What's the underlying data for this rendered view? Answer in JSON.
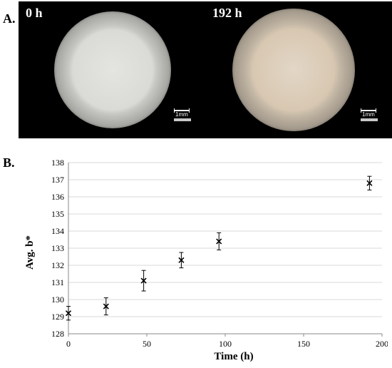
{
  "figure": {
    "panel_a_label": "A.",
    "panel_b_label": "B.",
    "images": [
      {
        "time_label": "0 h",
        "scale_label": "1mm"
      },
      {
        "time_label": "192 h",
        "scale_label": "1mm"
      }
    ]
  },
  "chart_data": {
    "type": "scatter",
    "xlabel": "Time (h)",
    "ylabel": "Avg. b*",
    "xlim": [
      0,
      200
    ],
    "ylim": [
      128,
      138
    ],
    "xticks": [
      0,
      50,
      100,
      150,
      200
    ],
    "yticks": [
      128,
      129,
      130,
      131,
      132,
      133,
      134,
      135,
      136,
      137,
      138
    ],
    "grid": "horizontal",
    "marker": "x",
    "points": [
      {
        "x": 0,
        "y": 129.2,
        "err": 0.4
      },
      {
        "x": 24,
        "y": 129.6,
        "err": 0.5
      },
      {
        "x": 48,
        "y": 131.1,
        "err": 0.6
      },
      {
        "x": 72,
        "y": 132.3,
        "err": 0.45
      },
      {
        "x": 96,
        "y": 133.4,
        "err": 0.5
      },
      {
        "x": 192,
        "y": 136.8,
        "err": 0.4
      }
    ]
  }
}
